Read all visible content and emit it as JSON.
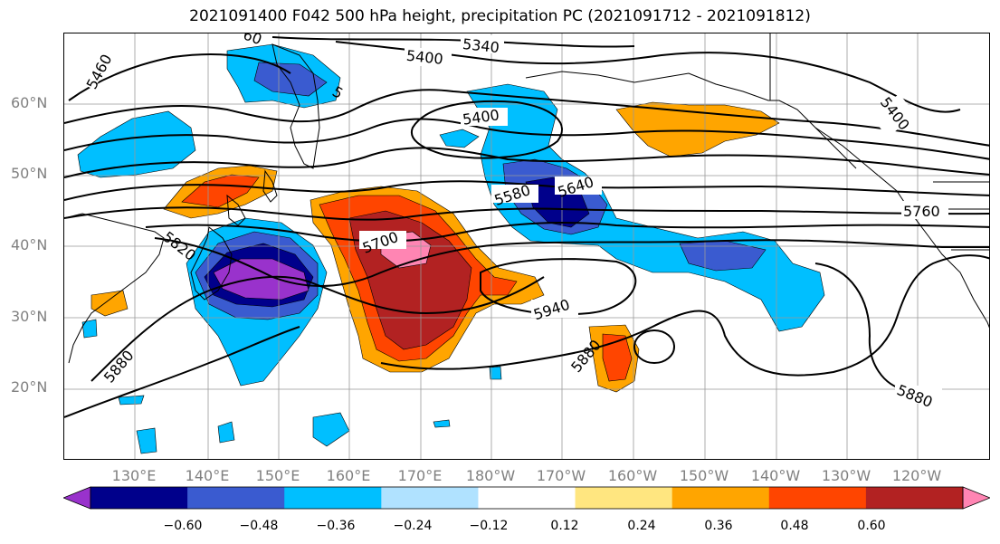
{
  "title": "2021091400 F042 500 hPa height, precipitation PC (2021091712 - 2021091812)",
  "lat_labels": [
    "60°N",
    "50°N",
    "40°N",
    "30°N",
    "20°N"
  ],
  "lon_labels": [
    "130°E",
    "140°E",
    "150°E",
    "160°E",
    "170°E",
    "180°W",
    "170°W",
    "160°W",
    "150°W",
    "140°W",
    "130°W",
    "120°W"
  ],
  "colorbar": {
    "ticks": [
      "−0.60",
      "−0.48",
      "−0.36",
      "−0.24",
      "−0.12",
      "0.12",
      "0.24",
      "0.36",
      "0.48",
      "0.60"
    ],
    "colors": [
      "#9932cc",
      "#00008b",
      "#3a5bd0",
      "#00bfff",
      "#b0e2ff",
      "#ffffff",
      "#ffe680",
      "#ffa500",
      "#ff4500",
      "#b22222",
      "#ff85b3"
    ]
  },
  "contour_labels": [
    "5460",
    "5340",
    "5400",
    "5400",
    "5400",
    "5580",
    "5640",
    "5760",
    "5700",
    "5820",
    "5940",
    "5880",
    "5880",
    "5880",
    "60",
    "5"
  ],
  "map": {
    "projection": "equirectangular",
    "lon_range": "120°E – 110°W",
    "lat_range": "10°N – 70°N",
    "grid": true
  }
}
